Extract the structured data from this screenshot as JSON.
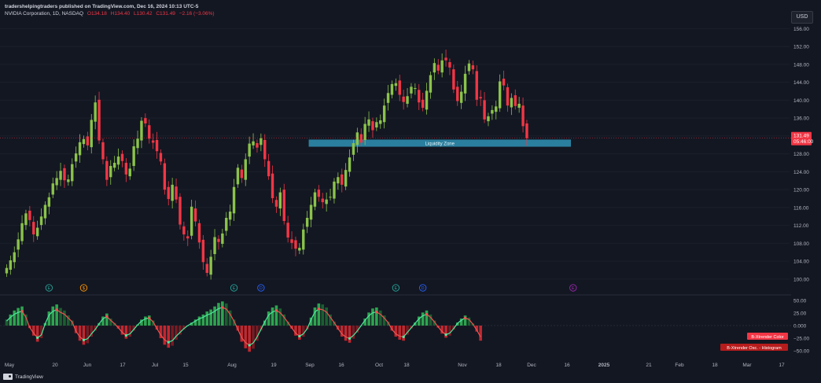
{
  "header": {
    "publisher": "tradershelpingtraders published on TradingView.com, Dec 16, 2024 10:13 UTC-5",
    "symbol": "NVIDIA Corporation, 1D, NASDAQ",
    "open": "O134.18",
    "high": "H134.40",
    "low": "L130.42",
    "close": "C131.49",
    "change": "−2.16 (−3.06%)"
  },
  "currency_button": "USD",
  "price_label": {
    "price": "131.49",
    "countdown": "05:46:00"
  },
  "liquidity_zone": {
    "label": "Liquidity Zone",
    "low": 129.6,
    "high": 131.2,
    "from_bar": 79
  },
  "event_markers": [
    {
      "label": "E",
      "bar": 11,
      "color": "#26a69a"
    },
    {
      "label": "$",
      "bar": 20,
      "color": "#ff9800"
    },
    {
      "label": "E",
      "bar": 59,
      "color": "#26a69a"
    },
    {
      "label": "D",
      "bar": 66,
      "color": "#2962ff"
    },
    {
      "label": "E",
      "bar": 101,
      "color": "#26a69a"
    },
    {
      "label": "D",
      "bar": 108,
      "color": "#2962ff"
    },
    {
      "label": "E",
      "bar": 147,
      "color": "#9c27b0"
    }
  ],
  "oscillator": {
    "labels": [
      "B-Xtrender Color",
      "B-Xtrender Osc. - Histogram"
    ],
    "ticks": [
      "50.00",
      "25.00",
      "0.000",
      "−25.00",
      "−50.00"
    ]
  },
  "footer": {
    "brand": "TradingView"
  },
  "colors": {
    "up": "#8bc34a",
    "down": "#f23645",
    "zone": "#2a7f9e",
    "bg": "#131722"
  },
  "chart_data": {
    "type": "candlestick",
    "price_axis_ticks": [
      "156.00",
      "152.00",
      "148.00",
      "144.00",
      "140.00",
      "136.00",
      "132.00",
      "128.00",
      "124.00",
      "120.00",
      "116.00",
      "112.00",
      "108.00",
      "104.00",
      "100.00"
    ],
    "time_axis_labels": [
      "May",
      "20",
      "Jun",
      "17",
      "Jul",
      "15",
      "Aug",
      "19",
      "Sep",
      "16",
      "Oct",
      "18",
      "Nov",
      "18",
      "Dec",
      "16",
      "2025",
      "21",
      "Feb",
      "18",
      "Mar",
      "17"
    ],
    "ylim": [
      97,
      158
    ],
    "closes": [
      102.5,
      104.2,
      106,
      108.9,
      112.5,
      114.7,
      113.2,
      110,
      111.5,
      114,
      116.6,
      118.3,
      121.4,
      122.6,
      124.2,
      122.1,
      122.3,
      125.7,
      128.1,
      130.6,
      131.3,
      129.9,
      135.6,
      139.5,
      131,
      126.8,
      122.2,
      125.3,
      126,
      127.4,
      126.4,
      123.4,
      124.7,
      129.7,
      131.4,
      135.4,
      134.8,
      131.4,
      130.5,
      128.6,
      126.3,
      120,
      117.9,
      121.1,
      117.8,
      112.2,
      110,
      109.1,
      116.2,
      112.9,
      108.2,
      103.8,
      101.4,
      105,
      109.4,
      108.3,
      110.2,
      113.7,
      115.1,
      120.6,
      124.9,
      122.6,
      126.8,
      130.3,
      130.8,
      129.4,
      131.5,
      126.8,
      123,
      118.1,
      116.2,
      119.4,
      113,
      109.3,
      108.1,
      106.8,
      107,
      111.1,
      113.7,
      116.6,
      119.4,
      118.4,
      117.2,
      117.8,
      118.4,
      121.8,
      122.8,
      121.1,
      124.4,
      127.2,
      130.4,
      132.8,
      130.5,
      134.7,
      135.7,
      133.3,
      135.1,
      135.5,
      138.8,
      141.6,
      143.6,
      143.8,
      141.2,
      139.6,
      140.9,
      143,
      142.7,
      139.5,
      138.3,
      142.1,
      145.6,
      148.3,
      146.6,
      148.9,
      148.9,
      147.3,
      142.4,
      139.8,
      141.9,
      145.9,
      148.2,
      146.9,
      140.1,
      140.4,
      135.7,
      136.4,
      137.8,
      138.6,
      144.2,
      143.3,
      138.8,
      140.5,
      138.7,
      139.2,
      134.2,
      131.5
    ],
    "osc_hist": [
      12,
      22,
      30,
      35,
      38,
      22,
      -5,
      -20,
      -32,
      -25,
      5,
      28,
      38,
      42,
      35,
      30,
      20,
      10,
      -15,
      -30,
      -38,
      -35,
      -22,
      -10,
      5,
      18,
      24,
      14,
      5,
      -6,
      -18,
      -26,
      -22,
      -10,
      2,
      12,
      18,
      20,
      10,
      -8,
      -25,
      -38,
      -44,
      -40,
      -28,
      -18,
      -8,
      0,
      6,
      12,
      18,
      22,
      28,
      32,
      38,
      45,
      48,
      44,
      30,
      12,
      -10,
      -32,
      -45,
      -52,
      -46,
      -30,
      -10,
      10,
      28,
      36,
      40,
      34,
      22,
      8,
      -6,
      -20,
      -28,
      -22,
      -8,
      16,
      36,
      44,
      42,
      36,
      22,
      8,
      -8,
      -22,
      -30,
      -34,
      -26,
      -14,
      0,
      14,
      26,
      34,
      36,
      30,
      20,
      8,
      -10,
      -22,
      -28,
      -30,
      -18,
      -6,
      6,
      18,
      26,
      30,
      22,
      10,
      -4,
      -16,
      -24,
      -20,
      -8,
      6,
      14,
      20,
      16,
      4,
      -12,
      -30
    ]
  }
}
